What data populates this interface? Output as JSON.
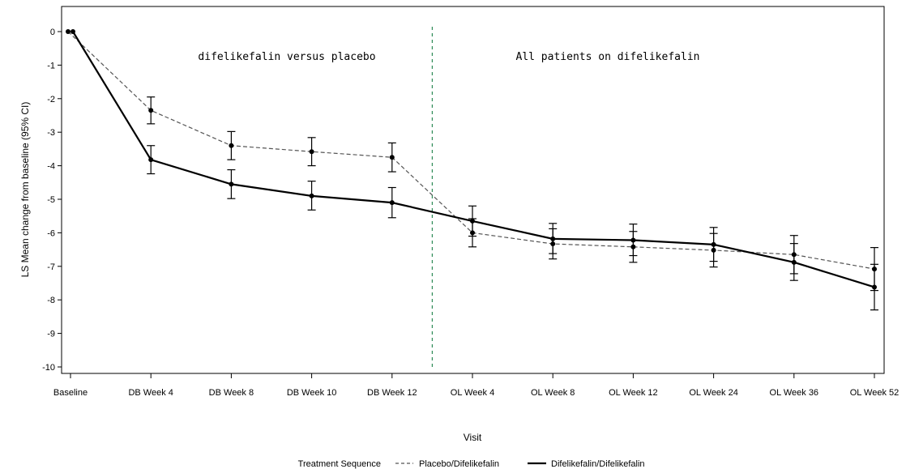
{
  "chart_data": {
    "type": "line",
    "xlabel": "Visit",
    "ylabel": "LS Mean change from baseline (95% CI)",
    "ylim": [
      -10,
      0
    ],
    "yticks": [
      0,
      -1,
      -2,
      -3,
      -4,
      -5,
      -6,
      -7,
      -8,
      -9,
      -10
    ],
    "categories": [
      "Baseline",
      "DB Week 4",
      "DB Week 8",
      "DB Week 10",
      "DB Week 12",
      "OL Week 4",
      "OL Week 8",
      "OL Week 12",
      "OL Week 24",
      "OL Week 36",
      "OL Week 52"
    ],
    "divider_after_category": "DB Week 12",
    "annotations": [
      "difelikefalin versus placebo",
      "All patients on difelikefalin"
    ],
    "legend": {
      "title": "Treatment Sequence",
      "position": "bottom"
    },
    "series": [
      {
        "name": "Placebo/Difelikefalin",
        "style": "dashed",
        "color": "#555555",
        "values": [
          0,
          -2.35,
          -3.4,
          -3.58,
          -3.75,
          -6.0,
          -6.33,
          -6.42,
          -6.52,
          -6.65,
          -7.08
        ],
        "ci_low": [
          0,
          -2.75,
          -3.82,
          -4.0,
          -4.18,
          -6.42,
          -6.78,
          -6.88,
          -7.02,
          -7.22,
          -7.72
        ],
        "ci_high": [
          0,
          -1.95,
          -2.98,
          -3.16,
          -3.32,
          -5.58,
          -5.88,
          -5.96,
          -6.02,
          -6.08,
          -6.44
        ]
      },
      {
        "name": "Difelikefalin/Difelikefalin",
        "style": "solid",
        "color": "#000000",
        "values": [
          0,
          -3.82,
          -4.55,
          -4.9,
          -5.1,
          -5.65,
          -6.18,
          -6.22,
          -6.35,
          -6.88,
          -7.62
        ],
        "ci_low": [
          0,
          -4.24,
          -4.98,
          -5.32,
          -5.55,
          -6.1,
          -6.62,
          -6.68,
          -6.85,
          -7.42,
          -8.3
        ],
        "ci_high": [
          0,
          -3.4,
          -4.12,
          -4.46,
          -4.65,
          -5.2,
          -5.72,
          -5.74,
          -5.84,
          -6.32,
          -6.94
        ]
      }
    ]
  }
}
